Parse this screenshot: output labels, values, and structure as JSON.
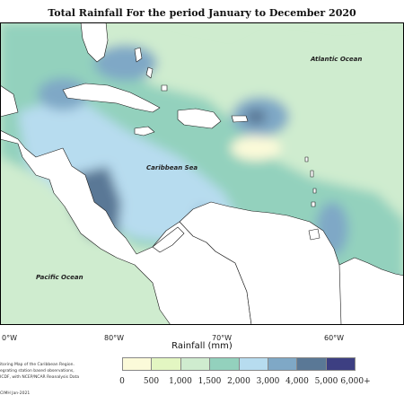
{
  "title": "Total Rainfall For the period January to December 2020",
  "map": {
    "labels": {
      "atlantic": "Atlantic Ocean",
      "caribbean": "Caribbean Sea",
      "pacific": "Pacific Ocean"
    },
    "longitudes": [
      "0°W",
      "80°W",
      "70°W",
      "60°W"
    ],
    "colors": {
      "land": "#ffffff",
      "coast": "#1a1a1a",
      "frame": "#000000"
    }
  },
  "legend": {
    "title": "Rainfall (mm)",
    "ticks": [
      "0",
      "500",
      "1,000",
      "1,500",
      "2,000",
      "3,000",
      "4,000",
      "5,000",
      "6,000+"
    ],
    "colors": [
      "#fbfad9",
      "#e3f6c2",
      "#cfeccf",
      "#93d1bd",
      "#b7dcef",
      "#7fa8c6",
      "#5a7896",
      "#3d3f82"
    ]
  },
  "notes": {
    "line1": "itoring Map of the Caribbean Region.",
    "line2": "egrating station based observations,",
    "line3": "ICDF, with NCEP/NCAR Reanalysis Data",
    "credit": "CIMH Jan-2021"
  }
}
